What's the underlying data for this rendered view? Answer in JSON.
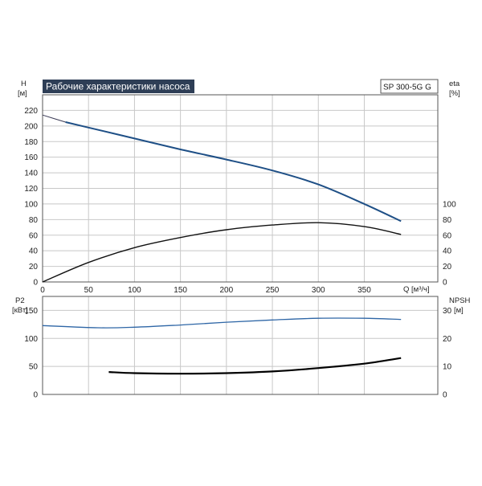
{
  "title": "Рабочие характеристики насоса",
  "model": "SP 300-5G G",
  "colors": {
    "title_bg": "#2e3e56",
    "head_curve": "#1e4f86",
    "p2_curve": "#2e66a6",
    "eta_curve": "#111111",
    "npsh_curve": "#000000",
    "grid": "#c8c8c8",
    "frame": "#555555"
  },
  "chart_data": [
    {
      "type": "line",
      "name": "pump-curves",
      "xlabel": "Q [м³/ч]",
      "ylabel_left": [
        "H",
        "[м]"
      ],
      "ylabel_right": [
        "eta",
        "[%]"
      ],
      "xlim": [
        0,
        430
      ],
      "ylim_left": [
        0,
        240
      ],
      "ylim_right": [
        0,
        240
      ],
      "x_ticks": [
        0,
        50,
        100,
        150,
        200,
        250,
        300,
        350
      ],
      "y_ticks_left": [
        0,
        20,
        40,
        60,
        80,
        100,
        120,
        140,
        160,
        180,
        200,
        220
      ],
      "y_ticks_right": [
        0,
        20,
        40,
        60,
        80,
        100
      ],
      "grid": true,
      "series": [
        {
          "axis": "left",
          "color_key": "head_curve",
          "dashed_start": true,
          "x": [
            0,
            25,
            50,
            100,
            150,
            200,
            250,
            300,
            350,
            390
          ],
          "y": [
            214,
            205,
            198,
            184,
            170,
            157,
            143,
            125,
            100,
            78
          ]
        },
        {
          "axis": "right",
          "color_key": "eta_curve",
          "x": [
            0,
            50,
            100,
            150,
            200,
            250,
            300,
            350,
            390
          ],
          "y": [
            0,
            25,
            44,
            57,
            67,
            73,
            76,
            71,
            61
          ]
        }
      ]
    },
    {
      "type": "line",
      "name": "power-npsh",
      "ylabel_left": [
        "P2",
        "[кВт]"
      ],
      "ylabel_right": [
        "NPSH",
        "[м]"
      ],
      "xlim": [
        0,
        430
      ],
      "ylim_left": [
        0,
        175
      ],
      "ylim_right": [
        0,
        35
      ],
      "y_ticks_left": [
        0,
        50,
        100,
        150
      ],
      "y_ticks_right": [
        0,
        10,
        20,
        30
      ],
      "grid": true,
      "series": [
        {
          "axis": "left",
          "color_key": "p2_curve",
          "x": [
            0,
            60,
            100,
            150,
            200,
            250,
            300,
            350,
            390
          ],
          "y": [
            123,
            119,
            120,
            124,
            129,
            133,
            136,
            136,
            134
          ]
        },
        {
          "axis": "right",
          "color_key": "npsh_curve",
          "x": [
            72,
            100,
            150,
            200,
            250,
            300,
            350,
            390
          ],
          "y": [
            8,
            7.6,
            7.4,
            7.6,
            8.2,
            9.4,
            11,
            13
          ]
        }
      ]
    }
  ]
}
